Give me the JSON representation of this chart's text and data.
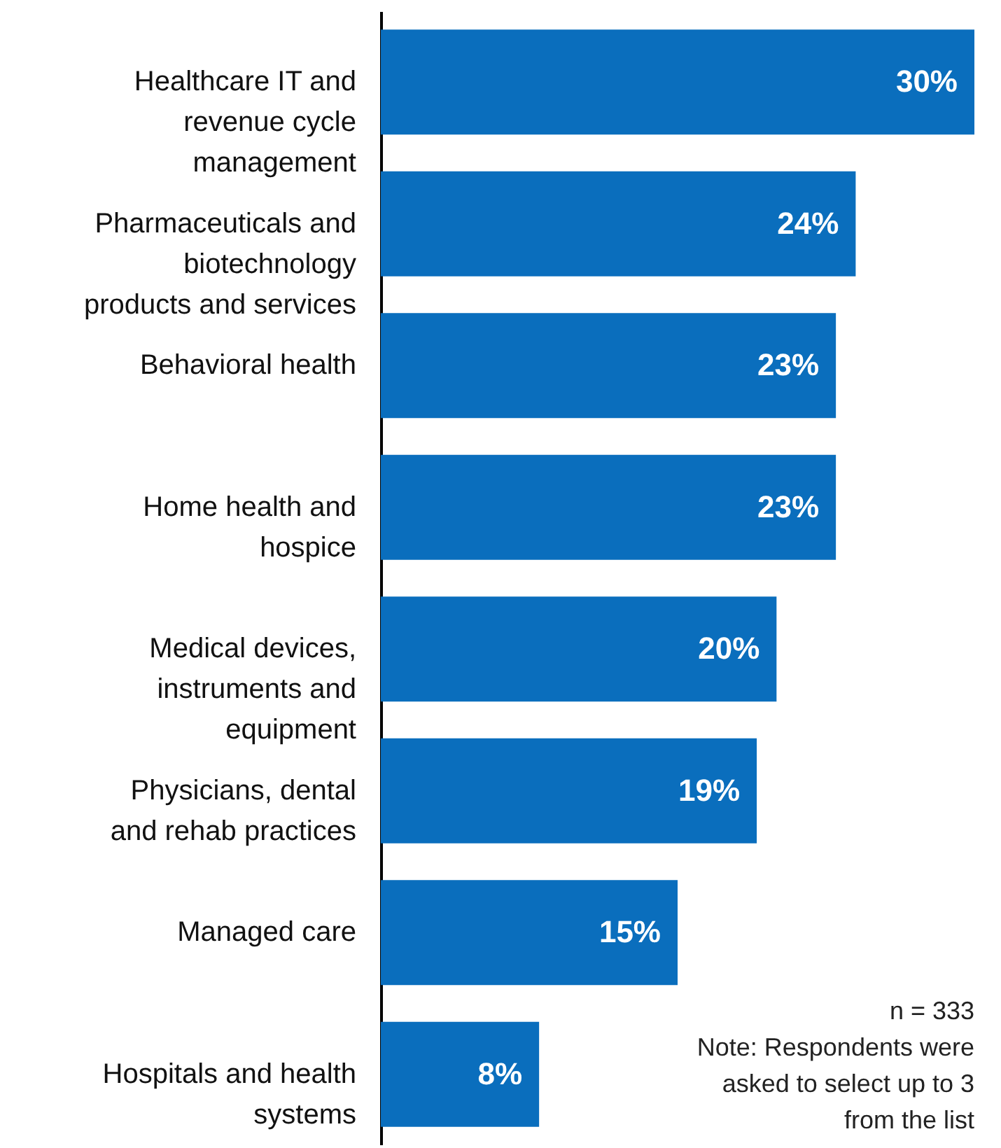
{
  "chart_data": {
    "type": "bar",
    "orientation": "horizontal",
    "categories": [
      "Healthcare IT and revenue cycle management",
      "Pharmaceuticals and biotechnology products and services",
      "Behavioral health",
      "Home health and hospice",
      "Medical devices, instruments and equipment",
      "Physicians, dental and rehab practices",
      "Managed care",
      "Hospitals and health systems"
    ],
    "values": [
      30,
      24,
      23,
      23,
      20,
      19,
      15,
      8
    ],
    "value_labels": [
      "30%",
      "24%",
      "23%",
      "23%",
      "20%",
      "19%",
      "15%",
      "8%"
    ],
    "color": "#0a6ebd",
    "annotations": [
      "n = 333",
      "Note: Respondents were asked to select up to 3 from the list"
    ]
  }
}
